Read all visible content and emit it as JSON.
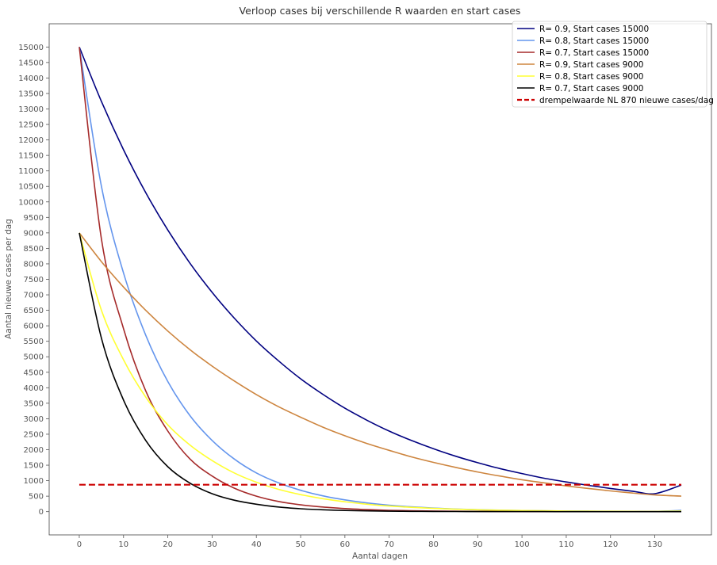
{
  "chart_data": {
    "type": "line",
    "title": "Verloop cases bij verschillende R waarden en start cases",
    "xlabel": "Aantal dagen",
    "ylabel": "Aantal nieuwe cases per dag",
    "xlim": [
      -6.8,
      142.8
    ],
    "ylim": [
      -750,
      15750
    ],
    "x_ticks": [
      0,
      10,
      20,
      30,
      40,
      50,
      60,
      70,
      80,
      90,
      100,
      110,
      120,
      130
    ],
    "y_ticks": [
      0,
      500,
      1000,
      1500,
      2000,
      2500,
      3000,
      3500,
      4000,
      4500,
      5000,
      5500,
      6000,
      6500,
      7000,
      7500,
      8000,
      8500,
      9000,
      9500,
      10000,
      10500,
      11000,
      11500,
      12000,
      12500,
      13000,
      13500,
      14000,
      14500,
      15000
    ],
    "grid": false,
    "legend_position": "top-right",
    "x": [
      0,
      5,
      10,
      15,
      20,
      25,
      30,
      35,
      40,
      45,
      50,
      55,
      60,
      65,
      70,
      75,
      80,
      85,
      90,
      95,
      100,
      105,
      110,
      115,
      120,
      125,
      130,
      136
    ],
    "series": [
      {
        "name": "R= 0.9, Start cases 15000",
        "color": "#000080",
        "values": [
          15000,
          13240,
          11680,
          10300,
          9090,
          8020,
          7080,
          6250,
          5510,
          4870,
          4290,
          3790,
          3340,
          2950,
          2600,
          2300,
          2030,
          1790,
          1580,
          1390,
          1230,
          1080,
          960,
          850,
          750,
          660,
          580,
          860
        ]
      },
      {
        "name": "R= 0.8, Start cases 15000",
        "color": "#6495ED",
        "values": [
          15000,
          10500,
          7700,
          5700,
          4200,
          3100,
          2300,
          1700,
          1250,
          930,
          690,
          510,
          380,
          280,
          210,
          155,
          115,
          85,
          63,
          47,
          35,
          26,
          19,
          14,
          10,
          8,
          6,
          40
        ]
      },
      {
        "name": "R= 0.7, Start cases 15000",
        "color": "#A52A2A",
        "values": [
          15000,
          8800,
          5900,
          3900,
          2600,
          1700,
          1150,
          760,
          500,
          330,
          220,
          150,
          100,
          65,
          43,
          29,
          19,
          13,
          9,
          6,
          4,
          3,
          2,
          1,
          1,
          0,
          0,
          0
        ]
      },
      {
        "name": "R= 0.9, Start cases 9000",
        "color": "#CD853F",
        "values": [
          9000,
          8070,
          7250,
          6500,
          5830,
          5230,
          4700,
          4220,
          3780,
          3390,
          3050,
          2730,
          2450,
          2200,
          1980,
          1770,
          1590,
          1430,
          1280,
          1150,
          1030,
          930,
          830,
          750,
          670,
          600,
          540,
          500
        ]
      },
      {
        "name": "R= 0.8, Start cases 9000",
        "color": "#FFFF33",
        "values": [
          9000,
          6500,
          4900,
          3700,
          2800,
          2150,
          1650,
          1250,
          950,
          720,
          550,
          420,
          320,
          240,
          180,
          140,
          105,
          80,
          60,
          46,
          35,
          27,
          20,
          15,
          12,
          9,
          7,
          20
        ]
      },
      {
        "name": "R= 0.7, Start cases 9000",
        "color": "#000000",
        "values": [
          9000,
          5600,
          3600,
          2300,
          1450,
          920,
          580,
          370,
          240,
          150,
          95,
          60,
          38,
          24,
          15,
          10,
          6,
          4,
          3,
          2,
          1,
          1,
          0,
          0,
          0,
          0,
          0,
          0
        ]
      },
      {
        "name": "drempelwaarde NL 870 nieuwe cases/dag",
        "color": "#CC0000",
        "dashed": true,
        "x": [
          0,
          136
        ],
        "values": [
          870,
          870
        ]
      }
    ]
  }
}
